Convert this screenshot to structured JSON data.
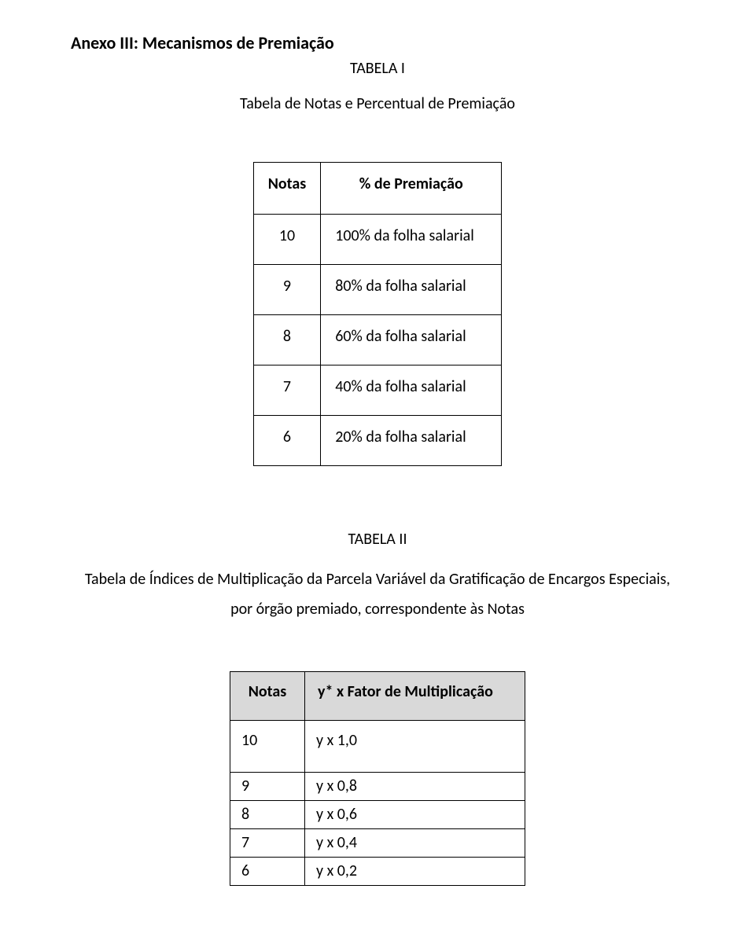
{
  "heading": "Anexo III: Mecanismos de Premiação",
  "table1": {
    "label": "TABELA I",
    "subtitle": "Tabela de Notas e Percentual de Premiação",
    "columns": {
      "notas": "Notas",
      "premiacao": "% de Premiação"
    },
    "rows": [
      {
        "nota": "10",
        "premiacao": "100% da folha salarial"
      },
      {
        "nota": "9",
        "premiacao": "80% da folha salarial"
      },
      {
        "nota": "8",
        "premiacao": "60% da folha salarial"
      },
      {
        "nota": "7",
        "premiacao": "40% da folha salarial"
      },
      {
        "nota": "6",
        "premiacao": "20% da folha salarial"
      }
    ]
  },
  "table2": {
    "label": "TABELA II",
    "description_line1": "Tabela de Índices de Multiplicação da Parcela Variável da Gratificação de Encargos Especiais,",
    "description_line2": "por órgão premiado, correspondente às Notas",
    "columns": {
      "notas": "Notas",
      "fator": "y* x Fator de Multiplicação"
    },
    "rows": [
      {
        "nota": "10",
        "fator": "y x 1,0"
      },
      {
        "nota": "9",
        "fator": "y x 0,8"
      },
      {
        "nota": "8",
        "fator": "y x 0,6"
      },
      {
        "nota": "7",
        "fator": "y x 0,4"
      },
      {
        "nota": "6",
        "fator": "y x 0,2"
      }
    ]
  }
}
